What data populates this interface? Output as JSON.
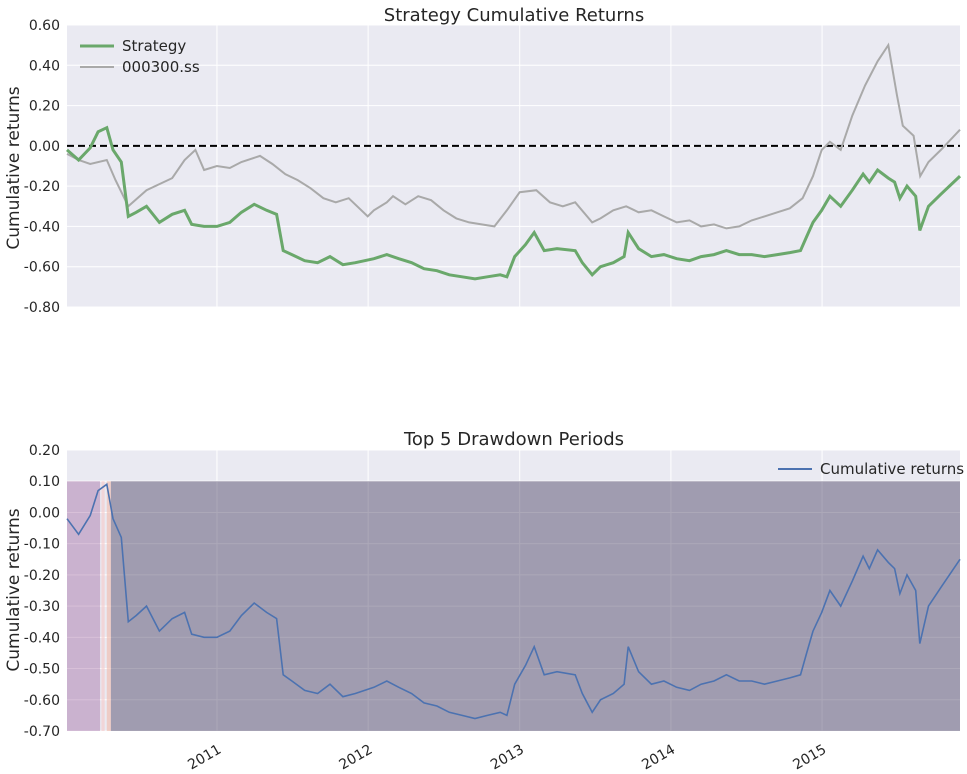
{
  "chart_data": [
    {
      "type": "line",
      "title": "Strategy Cumulative Returns",
      "xlabel": "",
      "ylabel": "Cumulative returns",
      "ylim": [
        -0.8,
        0.6
      ],
      "xlim": [
        "2010-01-04",
        "2015-11-30"
      ],
      "yticks": [
        "0.60",
        "0.40",
        "0.20",
        "0.00",
        "-0.20",
        "-0.40",
        "-0.60",
        "-0.80"
      ],
      "grid": true,
      "legend_position": "top-left",
      "reference_line": {
        "y": 0.0,
        "style": "dashed",
        "color": "#000000"
      },
      "series": [
        {
          "name": "Strategy",
          "color": "#6aa86b",
          "x": [
            "2010-01-04",
            "2010-02-01",
            "2010-03-01",
            "2010-03-20",
            "2010-04-10",
            "2010-04-25",
            "2010-05-15",
            "2010-06-01",
            "2010-06-20",
            "2010-07-15",
            "2010-08-15",
            "2010-09-15",
            "2010-10-15",
            "2010-11-01",
            "2010-12-01",
            "2011-01-01",
            "2011-02-01",
            "2011-03-01",
            "2011-04-01",
            "2011-05-01",
            "2011-05-25",
            "2011-06-10",
            "2011-07-01",
            "2011-08-01",
            "2011-09-01",
            "2011-10-01",
            "2011-11-01",
            "2011-12-01",
            "2012-01-15",
            "2012-02-15",
            "2012-03-15",
            "2012-04-15",
            "2012-05-15",
            "2012-06-15",
            "2012-07-15",
            "2012-08-15",
            "2012-09-15",
            "2012-10-15",
            "2012-11-15",
            "2012-12-01",
            "2012-12-20",
            "2013-01-15",
            "2013-02-05",
            "2013-03-01",
            "2013-04-01",
            "2013-05-15",
            "2013-06-01",
            "2013-06-25",
            "2013-07-15",
            "2013-08-15",
            "2013-09-10",
            "2013-09-20",
            "2013-10-15",
            "2013-11-15",
            "2013-12-15",
            "2014-01-15",
            "2014-02-15",
            "2014-03-15",
            "2014-04-15",
            "2014-05-15",
            "2014-06-15",
            "2014-07-15",
            "2014-08-15",
            "2014-09-15",
            "2014-10-15",
            "2014-11-10",
            "2014-11-25",
            "2014-12-10",
            "2014-12-31",
            "2015-01-20",
            "2015-02-15",
            "2015-03-15",
            "2015-04-10",
            "2015-04-25",
            "2015-05-15",
            "2015-06-10",
            "2015-06-25",
            "2015-07-08",
            "2015-07-25",
            "2015-08-15",
            "2015-08-25",
            "2015-09-15",
            "2015-10-15",
            "2015-11-30"
          ],
          "values": [
            -0.02,
            -0.07,
            -0.01,
            0.07,
            0.09,
            -0.02,
            -0.08,
            -0.35,
            -0.33,
            -0.3,
            -0.38,
            -0.34,
            -0.32,
            -0.39,
            -0.4,
            -0.4,
            -0.38,
            -0.33,
            -0.29,
            -0.32,
            -0.34,
            -0.52,
            -0.54,
            -0.57,
            -0.58,
            -0.55,
            -0.59,
            -0.58,
            -0.56,
            -0.54,
            -0.56,
            -0.58,
            -0.61,
            -0.62,
            -0.64,
            -0.65,
            -0.66,
            -0.65,
            -0.64,
            -0.65,
            -0.55,
            -0.49,
            -0.43,
            -0.52,
            -0.51,
            -0.52,
            -0.58,
            -0.64,
            -0.6,
            -0.58,
            -0.55,
            -0.43,
            -0.51,
            -0.55,
            -0.54,
            -0.56,
            -0.57,
            -0.55,
            -0.54,
            -0.52,
            -0.54,
            -0.54,
            -0.55,
            -0.54,
            -0.53,
            -0.52,
            -0.45,
            -0.38,
            -0.32,
            -0.25,
            -0.3,
            -0.22,
            -0.14,
            -0.18,
            -0.12,
            -0.16,
            -0.18,
            -0.26,
            -0.2,
            -0.25,
            -0.42,
            -0.3,
            -0.24,
            -0.15
          ]
        },
        {
          "name": "000300.ss",
          "color": "#a9a9a9",
          "x": [
            "2010-01-04",
            "2010-02-01",
            "2010-03-01",
            "2010-04-10",
            "2010-05-01",
            "2010-06-01",
            "2010-07-15",
            "2010-08-15",
            "2010-09-15",
            "2010-10-15",
            "2010-11-10",
            "2010-12-01",
            "2011-01-01",
            "2011-02-01",
            "2011-03-01",
            "2011-04-15",
            "2011-05-15",
            "2011-06-15",
            "2011-07-15",
            "2011-08-15",
            "2011-09-15",
            "2011-10-15",
            "2011-11-15",
            "2011-12-31",
            "2012-01-15",
            "2012-02-15",
            "2012-03-01",
            "2012-03-31",
            "2012-05-01",
            "2012-06-01",
            "2012-07-01",
            "2012-08-01",
            "2012-09-01",
            "2012-10-01",
            "2012-11-01",
            "2012-12-01",
            "2013-01-01",
            "2013-02-10",
            "2013-03-15",
            "2013-04-15",
            "2013-05-15",
            "2013-06-25",
            "2013-07-15",
            "2013-08-15",
            "2013-09-15",
            "2013-10-15",
            "2013-11-15",
            "2013-12-15",
            "2014-01-15",
            "2014-02-15",
            "2014-03-15",
            "2014-04-15",
            "2014-05-15",
            "2014-06-15",
            "2014-07-15",
            "2014-08-15",
            "2014-09-15",
            "2014-10-15",
            "2014-11-15",
            "2014-12-10",
            "2014-12-31",
            "2015-01-20",
            "2015-02-15",
            "2015-03-15",
            "2015-04-15",
            "2015-05-15",
            "2015-06-10",
            "2015-07-01",
            "2015-07-15",
            "2015-08-10",
            "2015-08-26",
            "2015-09-15",
            "2015-10-15",
            "2015-11-30"
          ],
          "values": [
            -0.04,
            -0.07,
            -0.09,
            -0.07,
            -0.17,
            -0.3,
            -0.22,
            -0.19,
            -0.16,
            -0.07,
            -0.02,
            -0.12,
            -0.1,
            -0.11,
            -0.08,
            -0.05,
            -0.09,
            -0.14,
            -0.17,
            -0.21,
            -0.26,
            -0.28,
            -0.26,
            -0.35,
            -0.32,
            -0.28,
            -0.25,
            -0.29,
            -0.25,
            -0.27,
            -0.32,
            -0.36,
            -0.38,
            -0.39,
            -0.4,
            -0.32,
            -0.23,
            -0.22,
            -0.28,
            -0.3,
            -0.28,
            -0.38,
            -0.36,
            -0.32,
            -0.3,
            -0.33,
            -0.32,
            -0.35,
            -0.38,
            -0.37,
            -0.4,
            -0.39,
            -0.41,
            -0.4,
            -0.37,
            -0.35,
            -0.33,
            -0.31,
            -0.26,
            -0.15,
            -0.02,
            0.02,
            -0.02,
            0.15,
            0.3,
            0.42,
            0.5,
            0.25,
            0.1,
            0.05,
            -0.15,
            -0.08,
            -0.02,
            0.08
          ]
        }
      ]
    },
    {
      "type": "line",
      "title": "Top 5 Drawdown Periods",
      "xlabel": "",
      "ylabel": "Cumulative returns",
      "ylim": [
        -0.7,
        0.2
      ],
      "xlim": [
        "2010-01-04",
        "2015-11-30"
      ],
      "yticks": [
        "0.20",
        "0.10",
        "0.00",
        "-0.10",
        "-0.20",
        "-0.30",
        "-0.40",
        "-0.50",
        "-0.60",
        "-0.70"
      ],
      "xticks": [
        "2011",
        "2012",
        "2013",
        "2014",
        "2015"
      ],
      "grid": true,
      "legend_position": "top-right",
      "shaded_regions": [
        {
          "from": "2010-01-04",
          "to": "2010-03-25",
          "color": "#8e4a8e",
          "opacity": 0.35
        },
        {
          "from": "2010-03-28",
          "to": "2010-04-05",
          "color": "#f5c6c6",
          "opacity": 0.6
        },
        {
          "from": "2010-04-10",
          "to": "2010-04-20",
          "color": "#f0b8a8",
          "opacity": 0.6
        },
        {
          "from": "2010-04-20",
          "to": "2015-11-30",
          "color": "#3a2f55",
          "opacity": 0.42
        }
      ],
      "series": [
        {
          "name": "Cumulative returns",
          "color": "#4c72b0",
          "same_as": "Strategy"
        }
      ]
    }
  ]
}
